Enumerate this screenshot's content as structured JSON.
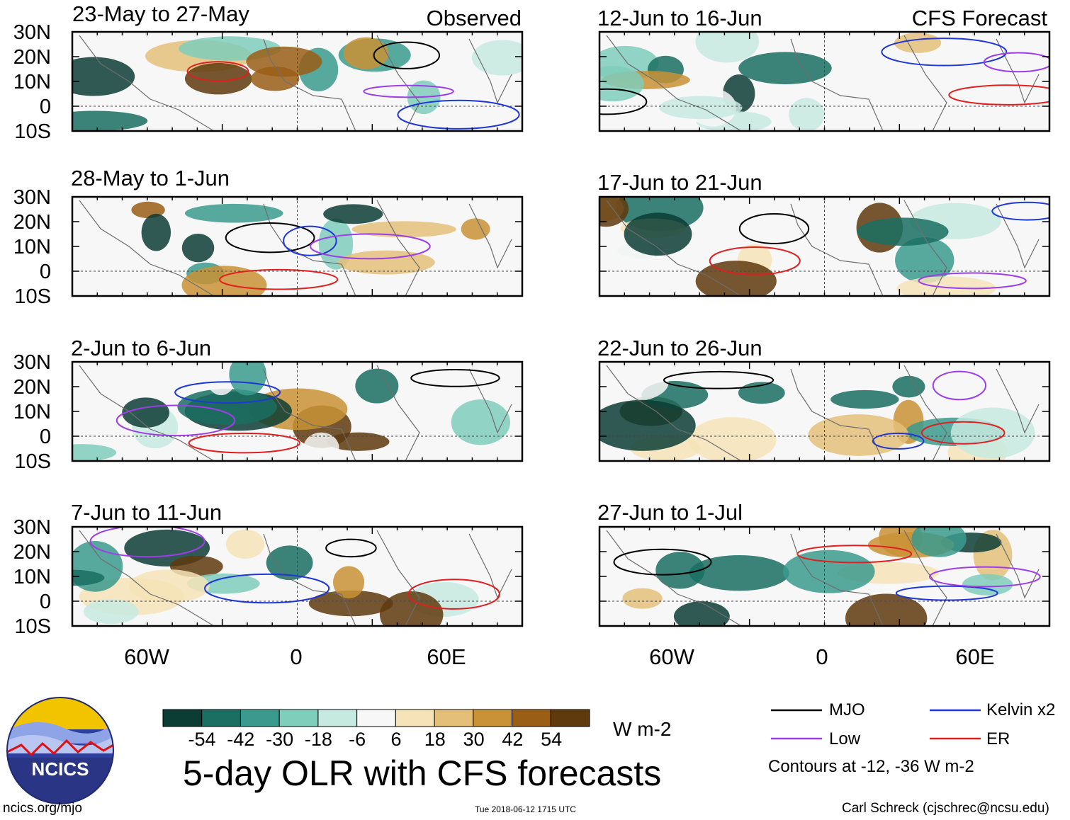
{
  "chart_data": {
    "type": "heatmap",
    "title": "5-day OLR with CFS forecasts",
    "units": "W m-2",
    "columns": [
      {
        "label": "Observed",
        "panels": [
          "23-May to 27-May",
          "28-May to 1-Jun",
          "2-Jun to 6-Jun",
          "7-Jun to 11-Jun"
        ]
      },
      {
        "label": "CFS Forecast",
        "panels": [
          "12-Jun to 16-Jun",
          "17-Jun to 21-Jun",
          "22-Jun to 26-Jun",
          "27-Jun to 1-Jul"
        ]
      }
    ],
    "lat_ticks": [
      "30N",
      "20N",
      "10N",
      "0",
      "10S"
    ],
    "lon_ticks": [
      "60W",
      "0",
      "60E"
    ],
    "lat_range": [
      -10,
      30
    ],
    "lon_range": [
      -90,
      90
    ],
    "colorbar": {
      "tick_labels": [
        "-54",
        "-42",
        "-30",
        "-18",
        "-6",
        "6",
        "18",
        "30",
        "42",
        "54"
      ],
      "colors": [
        "#0c3d35",
        "#1a6e62",
        "#3b9a8d",
        "#7fcdbb",
        "#c7eae0",
        "#f7f7f7",
        "#f6e3b7",
        "#e4bf7a",
        "#c99236",
        "#9a5e16",
        "#5f3a0d"
      ],
      "unit_label": "W m-2"
    },
    "contour_legend": [
      {
        "label": "MJO",
        "color": "#000000"
      },
      {
        "label": "Kelvin x2",
        "color": "#1f37d6"
      },
      {
        "label": "Low",
        "color": "#9d3ee8"
      },
      {
        "label": "ER",
        "color": "#e11f1f"
      }
    ],
    "contour_note": "Contours at -12, -36 W m-2"
  },
  "logo": {
    "text": "NCICS"
  },
  "footer": {
    "left": "ncics.org/mjo",
    "center": "Tue 2018-06-12 1715 UTC",
    "right": "Carl Schreck (cjschrec@ncsu.edu)"
  }
}
